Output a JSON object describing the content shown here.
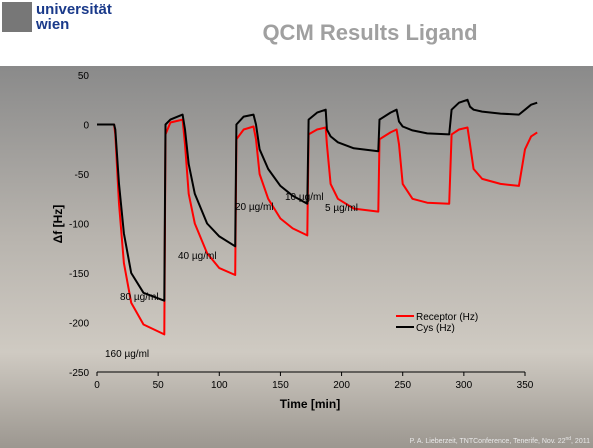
{
  "header": {
    "logo": [
      "universität",
      "wien"
    ],
    "title": "QCM Results Ligand"
  },
  "footer": [
    "P. A. Lieberzeit, TNTConference, Tenerife, Nov. 22",
    "nd",
    ", 2011"
  ],
  "chart_data": {
    "type": "line",
    "xlabel": "Time [min]",
    "ylabel": "Δf [Hz]",
    "x": [
      0,
      14,
      15,
      18,
      22,
      28,
      38,
      55,
      56,
      60,
      70,
      72,
      75,
      80,
      90,
      100,
      113,
      114,
      120,
      128,
      130,
      133,
      140,
      150,
      160,
      172,
      173,
      180,
      187,
      188,
      191,
      197,
      210,
      230,
      231,
      240,
      245,
      247,
      250,
      258,
      270,
      288,
      290,
      296,
      303,
      305,
      308,
      315,
      330,
      345,
      350,
      355,
      360
    ],
    "series": [
      {
        "name": "Receptor (Hz)",
        "color": "#ff0000",
        "values": [
          0,
          0,
          -10,
          -80,
          -140,
          -180,
          -202,
          -212,
          -10,
          2,
          5,
          -20,
          -70,
          -100,
          -130,
          -145,
          -152,
          -15,
          -5,
          -2,
          -15,
          -50,
          -75,
          -95,
          -105,
          -112,
          -10,
          -5,
          -3,
          -20,
          -60,
          -75,
          -85,
          -88,
          -15,
          -8,
          -5,
          -20,
          -60,
          -75,
          -79,
          -80,
          -10,
          -5,
          -3,
          -20,
          -45,
          -55,
          -60,
          -62,
          -25,
          -12,
          -8
        ]
      },
      {
        "name": "Cys (Hz)",
        "color": "#000000",
        "values": [
          0,
          0,
          -5,
          -60,
          -110,
          -150,
          -170,
          -178,
          0,
          5,
          10,
          -5,
          -40,
          -70,
          -100,
          -113,
          -123,
          0,
          8,
          10,
          0,
          -25,
          -45,
          -62,
          -72,
          -80,
          5,
          12,
          15,
          -5,
          -12,
          -18,
          -24,
          -27,
          5,
          12,
          15,
          3,
          -2,
          -6,
          -9,
          -10,
          15,
          22,
          25,
          18,
          15,
          13,
          11,
          10,
          15,
          20,
          22
        ]
      }
    ],
    "annotations": [
      "160 µg/ml",
      "80 µg/ml",
      "40 µg/ml",
      "20 µg/ml",
      "10 µg/ml",
      "5 µg/ml"
    ],
    "xlim": [
      0,
      350
    ],
    "xticks": [
      0,
      50,
      100,
      150,
      200,
      250,
      300,
      350
    ],
    "ylim": [
      -250,
      50
    ],
    "yticks": [
      -250,
      -200,
      -150,
      -100,
      -50,
      0,
      50
    ],
    "legend": "lower-right"
  }
}
